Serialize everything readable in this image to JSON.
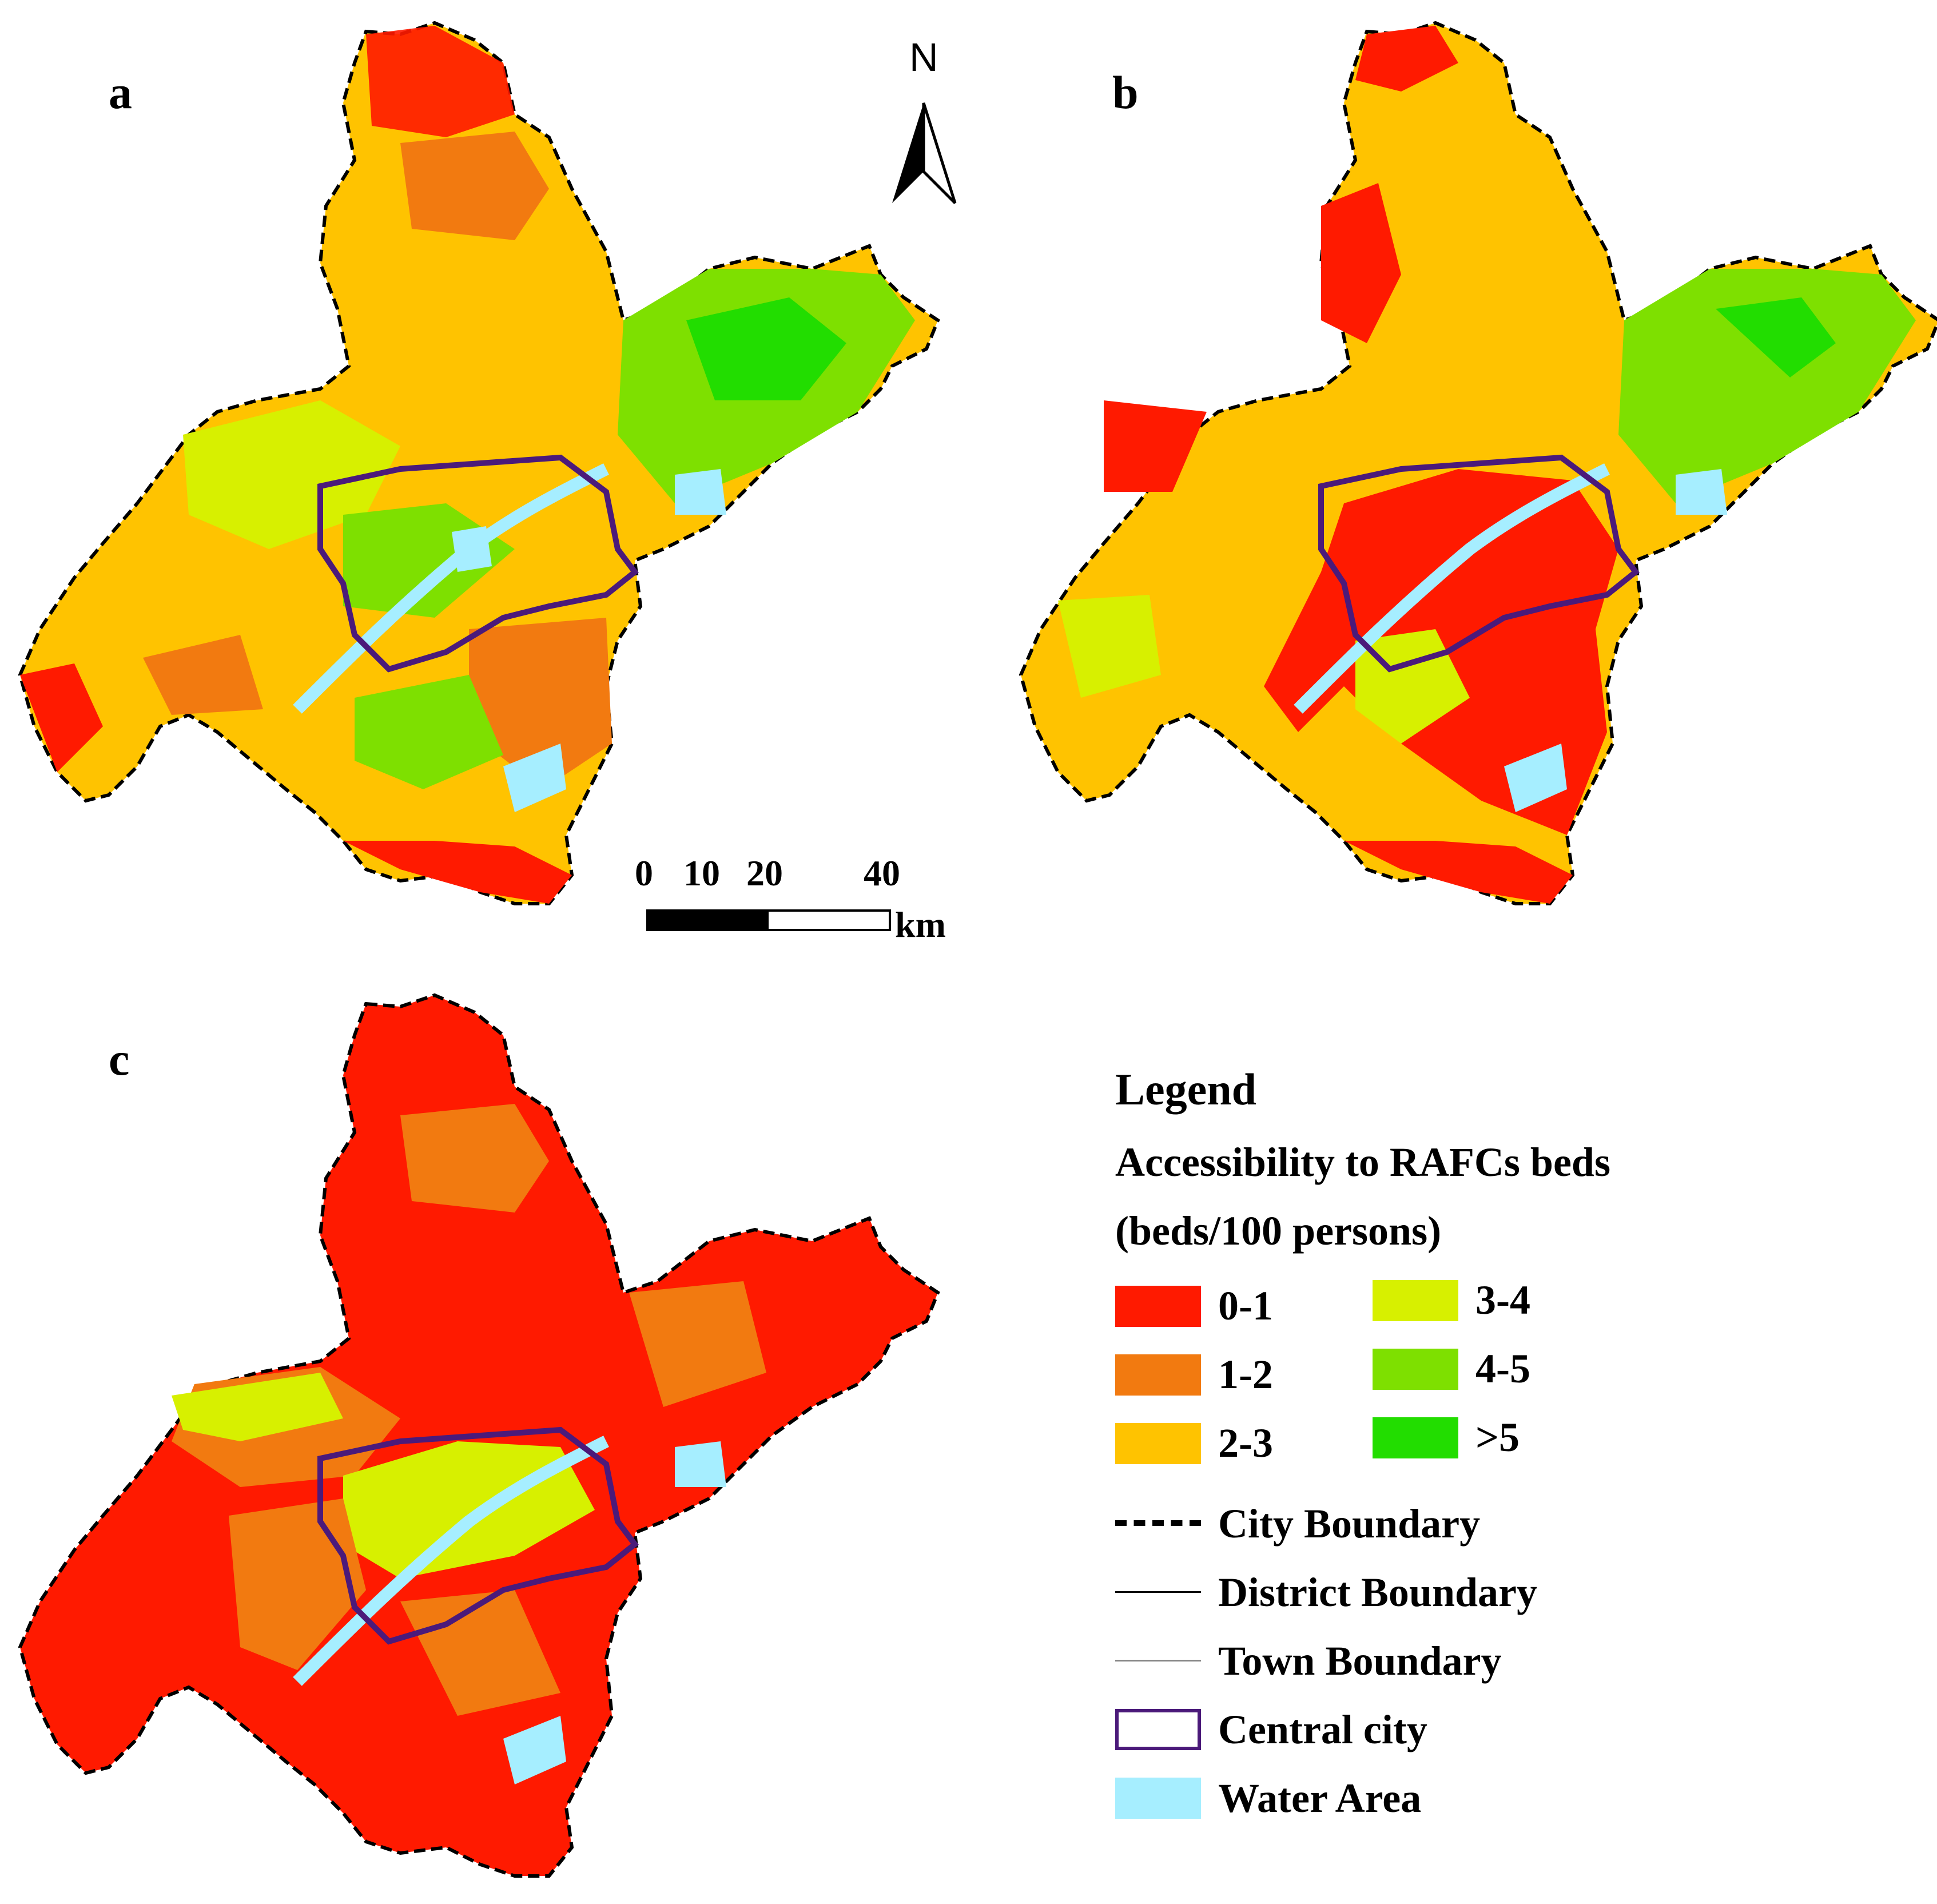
{
  "panels": [
    {
      "label": "a",
      "palette": [
        "#ff9a00",
        "#ffc300",
        "#d7f000",
        "#7ee000",
        "#22dd00",
        "#f27a10",
        "#ff1a00"
      ]
    },
    {
      "label": "b",
      "palette": [
        "#ffc300",
        "#d7f000",
        "#7ee000",
        "#ff1a00",
        "#f27a10",
        "#22dd00",
        "#ffc300"
      ]
    },
    {
      "label": "c",
      "palette": [
        "#ff1a00",
        "#f27a10",
        "#ff1a00",
        "#f27a10",
        "#d7f000",
        "#ff1a00",
        "#7ee000"
      ]
    }
  ],
  "north_arrow": {
    "label": "N"
  },
  "scale_bar": {
    "ticks": [
      "0",
      "10",
      "20",
      "40"
    ],
    "unit": "km"
  },
  "legend": {
    "title": "Legend",
    "subtitle_1": "Accessibility to RAFCs beds",
    "subtitle_2": "(beds/100 persons)",
    "classes": [
      {
        "label": "0-1",
        "color": "#ff1a00"
      },
      {
        "label": "1-2",
        "color": "#f27a10"
      },
      {
        "label": "2-3",
        "color": "#ffc300"
      },
      {
        "label": "3-4",
        "color": "#d7f000"
      },
      {
        "label": "4-5",
        "color": "#7ee000"
      },
      {
        "label": ">5",
        "color": "#22dd00"
      }
    ],
    "lines": [
      {
        "label": "City Boundary",
        "kind": "dashed"
      },
      {
        "label": "District Boundary",
        "kind": "thin"
      },
      {
        "label": "Town Boundary",
        "kind": "gray"
      },
      {
        "label": "Central city",
        "kind": "box",
        "color": "#4b1a7a"
      },
      {
        "label": "Water Area",
        "kind": "fill",
        "color": "#a6eeff"
      }
    ]
  }
}
